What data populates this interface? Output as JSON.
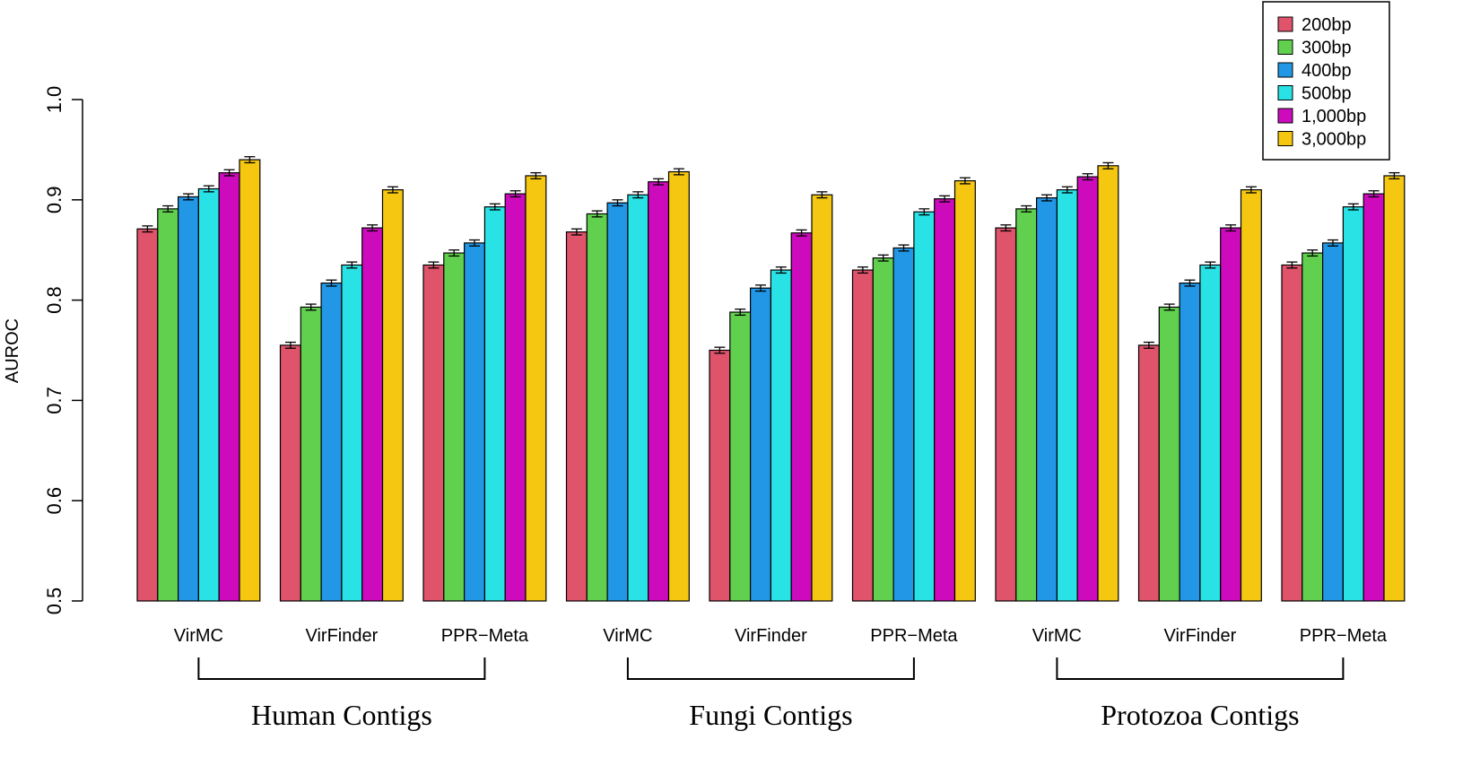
{
  "chart_data": {
    "type": "bar",
    "title": "",
    "xlabel": "",
    "ylabel": "AUROC",
    "ylim": [
      0.5,
      1.0
    ],
    "yticks": [
      "0.5",
      "0.6",
      "0.7",
      "0.8",
      "0.9",
      "1.0"
    ],
    "grid": false,
    "legend_position": "top-right",
    "groups": [
      {
        "label": "Human Contigs",
        "categories": [
          "VirMC",
          "VirFinder",
          "PPR−Meta"
        ]
      },
      {
        "label": "Fungi Contigs",
        "categories": [
          "VirMC",
          "VirFinder",
          "PPR−Meta"
        ]
      },
      {
        "label": "Protozoa Contigs",
        "categories": [
          "VirMC",
          "VirFinder",
          "PPR−Meta"
        ]
      }
    ],
    "categories": [
      "VirMC",
      "VirFinder",
      "PPR−Meta",
      "VirMC",
      "VirFinder",
      "PPR−Meta",
      "VirMC",
      "VirFinder",
      "PPR−Meta"
    ],
    "error_bar": 0.003,
    "series": [
      {
        "name": "200bp",
        "color": "#DF536B",
        "values": [
          0.871,
          0.755,
          0.835,
          0.868,
          0.75,
          0.83,
          0.872,
          0.755,
          0.835
        ]
      },
      {
        "name": "300bp",
        "color": "#61D04F",
        "values": [
          0.891,
          0.793,
          0.847,
          0.886,
          0.788,
          0.842,
          0.891,
          0.793,
          0.847
        ]
      },
      {
        "name": "400bp",
        "color": "#2297E6",
        "values": [
          0.903,
          0.817,
          0.857,
          0.897,
          0.812,
          0.852,
          0.902,
          0.817,
          0.857
        ]
      },
      {
        "name": "500bp",
        "color": "#28E2E5",
        "values": [
          0.911,
          0.835,
          0.893,
          0.905,
          0.83,
          0.888,
          0.91,
          0.835,
          0.893
        ]
      },
      {
        "name": "1,000bp",
        "color": "#CD0BBC",
        "values": [
          0.927,
          0.872,
          0.906,
          0.918,
          0.867,
          0.901,
          0.923,
          0.872,
          0.906
        ]
      },
      {
        "name": "3,000bp",
        "color": "#F5C710",
        "values": [
          0.94,
          0.91,
          0.924,
          0.928,
          0.905,
          0.919,
          0.934,
          0.91,
          0.924
        ]
      }
    ]
  }
}
